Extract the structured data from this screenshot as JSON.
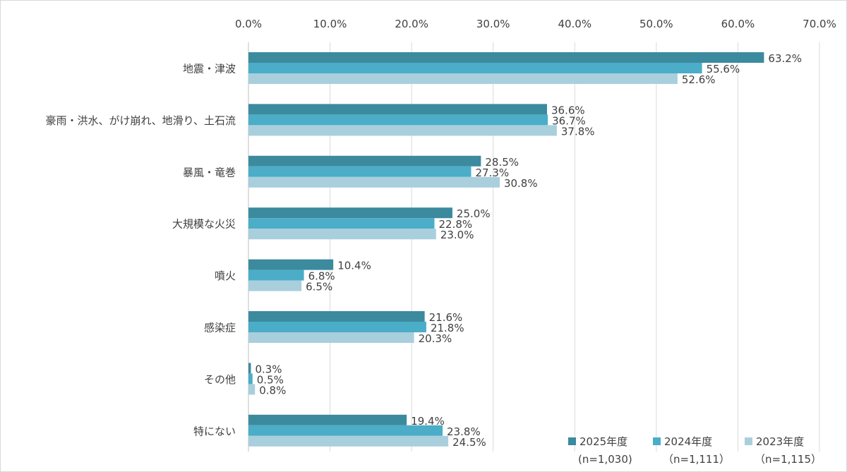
{
  "chart_data": {
    "type": "bar",
    "orientation": "horizontal",
    "title": "",
    "xlabel": "",
    "ylabel": "",
    "xlim": [
      0,
      70
    ],
    "x_ticks": [
      "0.0%",
      "10.0%",
      "20.0%",
      "30.0%",
      "40.0%",
      "50.0%",
      "60.0%",
      "70.0%"
    ],
    "x_tick_values": [
      0,
      10,
      20,
      30,
      40,
      50,
      60,
      70
    ],
    "grid": true,
    "legend_position": "bottom-right",
    "categories": [
      "地震・津波",
      "豪雨・洪水、がけ崩れ、地滑り、土石流",
      "暴風・竜巻",
      "大規模な火災",
      "噴火",
      "感染症",
      "その他",
      "特にない"
    ],
    "series": [
      {
        "name": "2025年度",
        "note": "(n=1,030)",
        "color": "#3b8a9e",
        "values": [
          63.2,
          36.6,
          28.5,
          25.0,
          10.4,
          21.6,
          0.3,
          19.4
        ]
      },
      {
        "name": "2024年度",
        "note": "（n=1,111）",
        "color": "#4badc7",
        "values": [
          55.6,
          36.7,
          27.3,
          22.8,
          6.8,
          21.8,
          0.5,
          23.8
        ]
      },
      {
        "name": "2023年度",
        "note": "（n=1,115）",
        "color": "#a9cfdd",
        "values": [
          52.6,
          37.8,
          30.8,
          23.0,
          6.5,
          20.3,
          0.8,
          24.5
        ]
      }
    ]
  }
}
